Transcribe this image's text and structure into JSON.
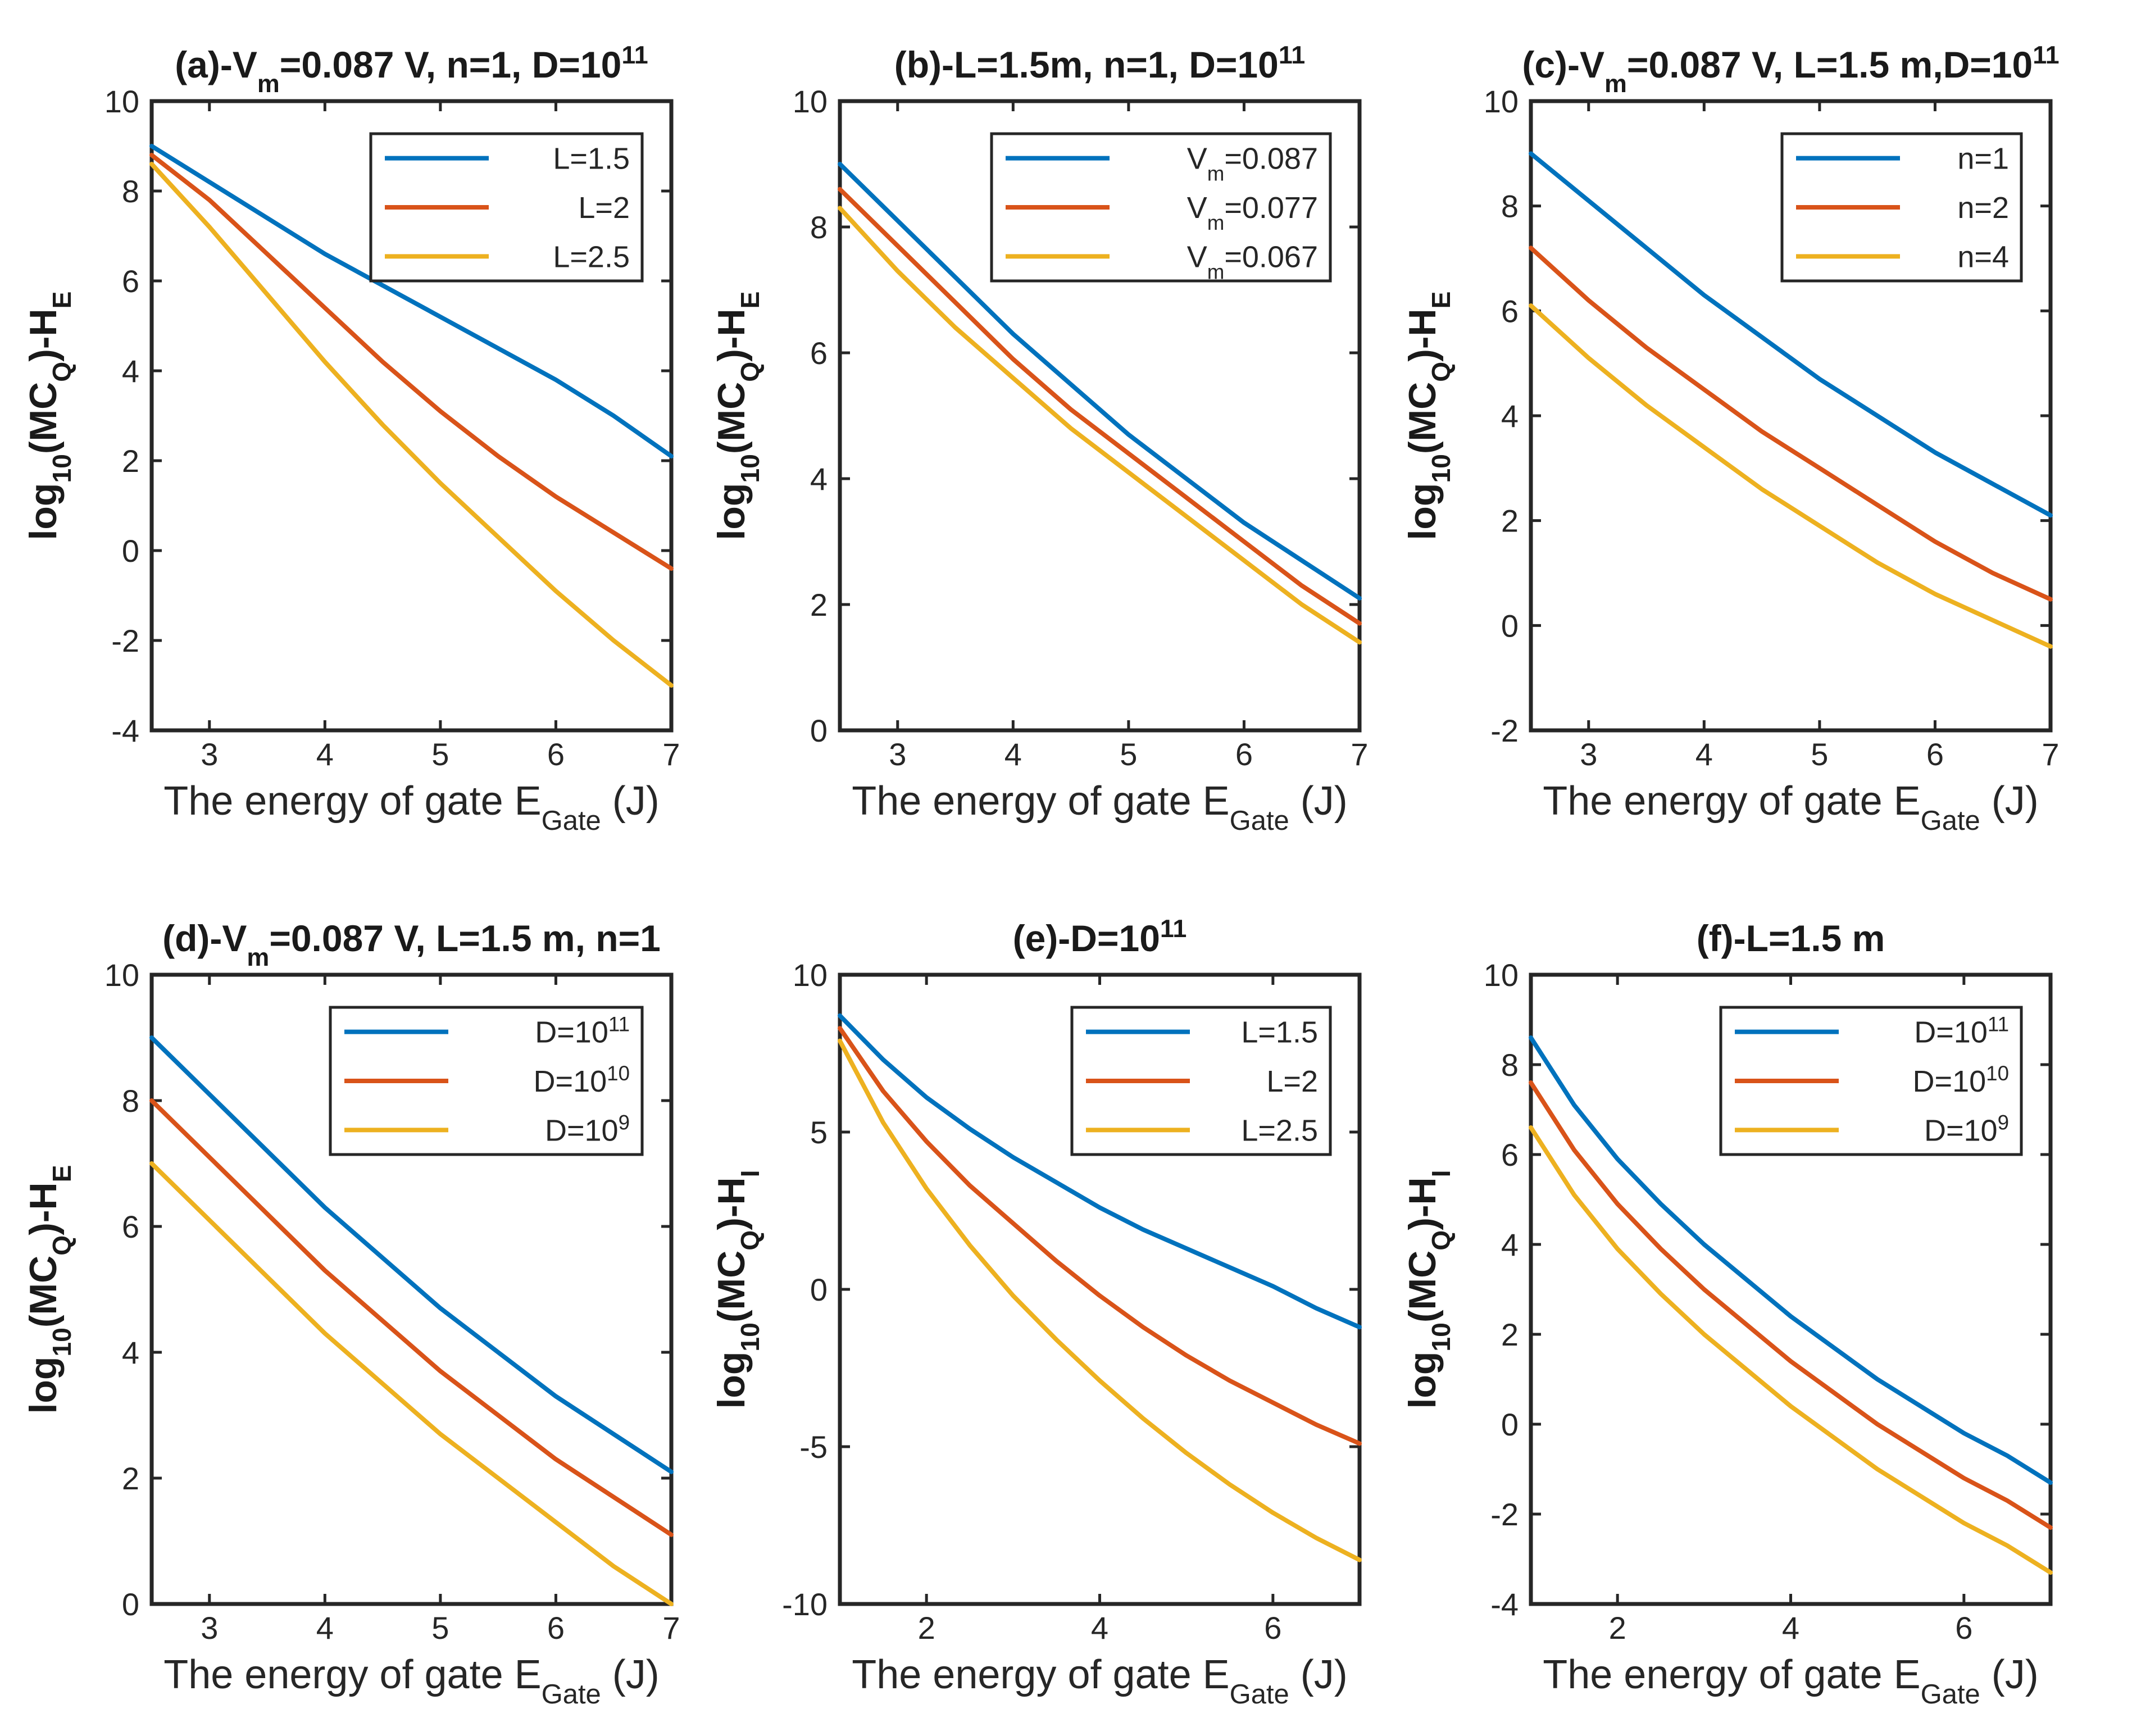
{
  "colors": {
    "blue": "#0072BD",
    "red": "#D95319",
    "yellow": "#EDB120",
    "axis": "#262626"
  },
  "chart_data": [
    {
      "id": "a",
      "type": "line",
      "title_parts": [
        "(a)-V",
        "m",
        "=0.087  V,  n=1,  D=10",
        "11"
      ],
      "xlabel_parts": [
        "The  energy  of  gate  E",
        "Gate",
        "  (J)"
      ],
      "ylabel_parts": [
        "log",
        "10",
        "(MC",
        "Q",
        ")-H",
        "E"
      ],
      "xlim": [
        2.5,
        7
      ],
      "ylim": [
        -4,
        10
      ],
      "xticks": [
        3,
        4,
        5,
        6,
        7
      ],
      "yticks": [
        -4,
        -2,
        0,
        2,
        4,
        6,
        8,
        10
      ],
      "series": [
        {
          "name": "L=1.5",
          "color": "blue",
          "x": [
            2.5,
            3,
            3.5,
            4,
            4.5,
            5,
            5.5,
            6,
            6.5,
            7
          ],
          "y": [
            9.0,
            8.2,
            7.4,
            6.6,
            5.9,
            5.2,
            4.5,
            3.8,
            3.0,
            2.1
          ]
        },
        {
          "name": "L=2",
          "color": "red",
          "x": [
            2.5,
            3,
            3.5,
            4,
            4.5,
            5,
            5.5,
            6,
            6.5,
            7
          ],
          "y": [
            8.8,
            7.8,
            6.6,
            5.4,
            4.2,
            3.1,
            2.1,
            1.2,
            0.4,
            -0.4
          ]
        },
        {
          "name": "L=2.5",
          "color": "yellow",
          "x": [
            2.5,
            3,
            3.5,
            4,
            4.5,
            5,
            5.5,
            6,
            6.5,
            7
          ],
          "y": [
            8.6,
            7.2,
            5.7,
            4.2,
            2.8,
            1.5,
            0.3,
            -0.9,
            -2.0,
            -3.0
          ]
        }
      ]
    },
    {
      "id": "b",
      "type": "line",
      "title_parts": [
        "(b)-L=",
        "1.5",
        "m,  n=1,  D=10",
        "11"
      ],
      "xlabel_parts": [
        "The  energy  of  gate  E",
        "Gate",
        "  (J)"
      ],
      "ylabel_parts": [
        "log",
        "10",
        "(MC",
        "Q",
        ")-H",
        "E"
      ],
      "xlim": [
        2.5,
        7
      ],
      "ylim": [
        0,
        10
      ],
      "xticks": [
        3,
        4,
        5,
        6,
        7
      ],
      "yticks": [
        0,
        2,
        4,
        6,
        8,
        10
      ],
      "series": [
        {
          "name": "V_m=0.087",
          "legend_parts": [
            "V",
            "m",
            "=0.087"
          ],
          "color": "blue",
          "x": [
            2.5,
            3,
            3.5,
            4,
            4.5,
            5,
            5.5,
            6,
            6.5,
            7
          ],
          "y": [
            9.0,
            8.1,
            7.2,
            6.3,
            5.5,
            4.7,
            4.0,
            3.3,
            2.7,
            2.1
          ]
        },
        {
          "name": "V_m=0.077",
          "legend_parts": [
            "V",
            "m",
            "=0.077"
          ],
          "color": "red",
          "x": [
            2.5,
            3,
            3.5,
            4,
            4.5,
            5,
            5.5,
            6,
            6.5,
            7
          ],
          "y": [
            8.6,
            7.7,
            6.8,
            5.9,
            5.1,
            4.4,
            3.7,
            3.0,
            2.3,
            1.7
          ]
        },
        {
          "name": "V_m=0.067",
          "legend_parts": [
            "V",
            "m",
            "=0.067"
          ],
          "color": "yellow",
          "x": [
            2.5,
            3,
            3.5,
            4,
            4.5,
            5,
            5.5,
            6,
            6.5,
            7
          ],
          "y": [
            8.3,
            7.3,
            6.4,
            5.6,
            4.8,
            4.1,
            3.4,
            2.7,
            2.0,
            1.4
          ]
        }
      ]
    },
    {
      "id": "c",
      "type": "line",
      "title_parts": [
        "(c)-V",
        "m",
        "=0.087  V,  L=1.5  m,D=10",
        "11"
      ],
      "xlabel_parts": [
        "The  energy  of  gate  E",
        "Gate",
        "  (J)"
      ],
      "ylabel_parts": [
        "log",
        "10",
        "(MC",
        "Q",
        ")-H",
        "E"
      ],
      "xlim": [
        2.5,
        7
      ],
      "ylim": [
        -2,
        10
      ],
      "xticks": [
        3,
        4,
        5,
        6,
        7
      ],
      "yticks": [
        -2,
        0,
        2,
        4,
        6,
        8,
        10
      ],
      "series": [
        {
          "name": "n=1",
          "color": "blue",
          "x": [
            2.5,
            3,
            3.5,
            4,
            4.5,
            5,
            5.5,
            6,
            6.5,
            7
          ],
          "y": [
            9.0,
            8.1,
            7.2,
            6.3,
            5.5,
            4.7,
            4.0,
            3.3,
            2.7,
            2.1
          ]
        },
        {
          "name": "n=2",
          "color": "red",
          "x": [
            2.5,
            3,
            3.5,
            4,
            4.5,
            5,
            5.5,
            6,
            6.5,
            7
          ],
          "y": [
            7.2,
            6.2,
            5.3,
            4.5,
            3.7,
            3.0,
            2.3,
            1.6,
            1.0,
            0.5
          ]
        },
        {
          "name": "n=4",
          "color": "yellow",
          "x": [
            2.5,
            3,
            3.5,
            4,
            4.5,
            5,
            5.5,
            6,
            6.5,
            7
          ],
          "y": [
            6.1,
            5.1,
            4.2,
            3.4,
            2.6,
            1.9,
            1.2,
            0.6,
            0.1,
            -0.4
          ]
        }
      ]
    },
    {
      "id": "d",
      "type": "line",
      "title_parts": [
        "(d)-V",
        "m",
        "=0.087  V,  L=1.5  m,  n=1"
      ],
      "xlabel_parts": [
        "The  energy  of  gate  E",
        "Gate",
        "  (J)"
      ],
      "ylabel_parts": [
        "log",
        "10",
        "(MC",
        "Q",
        ")-H",
        "E"
      ],
      "xlim": [
        2.5,
        7
      ],
      "ylim": [
        0,
        10
      ],
      "xticks": [
        3,
        4,
        5,
        6,
        7
      ],
      "yticks": [
        0,
        2,
        4,
        6,
        8,
        10
      ],
      "series": [
        {
          "name": "D=10^11",
          "legend_parts": [
            "D=10",
            "11"
          ],
          "color": "blue",
          "x": [
            2.5,
            3,
            3.5,
            4,
            4.5,
            5,
            5.5,
            6,
            6.5,
            7
          ],
          "y": [
            9.0,
            8.1,
            7.2,
            6.3,
            5.5,
            4.7,
            4.0,
            3.3,
            2.7,
            2.1
          ]
        },
        {
          "name": "D=10^10",
          "legend_parts": [
            "D=10",
            "10"
          ],
          "color": "red",
          "x": [
            2.5,
            3,
            3.5,
            4,
            4.5,
            5,
            5.5,
            6,
            6.5,
            7
          ],
          "y": [
            8.0,
            7.1,
            6.2,
            5.3,
            4.5,
            3.7,
            3.0,
            2.3,
            1.7,
            1.1
          ]
        },
        {
          "name": "D=10^9",
          "legend_parts": [
            "D=10",
            "9"
          ],
          "color": "yellow",
          "x": [
            2.5,
            3,
            3.5,
            4,
            4.5,
            5,
            5.5,
            6,
            6.5,
            7
          ],
          "y": [
            7.0,
            6.1,
            5.2,
            4.3,
            3.5,
            2.7,
            2.0,
            1.3,
            0.6,
            0.0
          ]
        }
      ]
    },
    {
      "id": "e",
      "type": "line",
      "title_parts": [
        "(e)-D=10",
        "11"
      ],
      "xlabel_parts": [
        "The  energy  of  gate  E",
        "Gate",
        "  (J)"
      ],
      "ylabel_parts": [
        "log",
        "10",
        "(MC",
        "Q",
        ")-H",
        "I"
      ],
      "xlim": [
        1,
        7
      ],
      "ylim": [
        -10,
        10
      ],
      "xticks": [
        2,
        4,
        6
      ],
      "yticks": [
        -10,
        -5,
        0,
        5,
        10
      ],
      "series": [
        {
          "name": "L=1.5",
          "color": "blue",
          "x": [
            1,
            1.5,
            2,
            2.5,
            3,
            3.5,
            4,
            4.5,
            5,
            5.5,
            6,
            6.5,
            7
          ],
          "y": [
            8.7,
            7.3,
            6.1,
            5.1,
            4.2,
            3.4,
            2.6,
            1.9,
            1.3,
            0.7,
            0.1,
            -0.6,
            -1.2
          ]
        },
        {
          "name": "L=2",
          "color": "red",
          "x": [
            1,
            1.5,
            2,
            2.5,
            3,
            3.5,
            4,
            4.5,
            5,
            5.5,
            6,
            6.5,
            7
          ],
          "y": [
            8.3,
            6.3,
            4.7,
            3.3,
            2.1,
            0.9,
            -0.2,
            -1.2,
            -2.1,
            -2.9,
            -3.6,
            -4.3,
            -4.9
          ]
        },
        {
          "name": "L=2.5",
          "color": "yellow",
          "x": [
            1,
            1.5,
            2,
            2.5,
            3,
            3.5,
            4,
            4.5,
            5,
            5.5,
            6,
            6.5,
            7
          ],
          "y": [
            7.9,
            5.3,
            3.2,
            1.4,
            -0.2,
            -1.6,
            -2.9,
            -4.1,
            -5.2,
            -6.2,
            -7.1,
            -7.9,
            -8.6
          ]
        }
      ]
    },
    {
      "id": "f",
      "type": "line",
      "title_parts": [
        "(f)-L=",
        "1.5",
        " m"
      ],
      "xlabel_parts": [
        "The  energy  of  gate  E",
        "Gate",
        "  (J)"
      ],
      "ylabel_parts": [
        "log",
        "10",
        "(MC",
        "Q",
        ")-H",
        "I"
      ],
      "xlim": [
        1,
        7
      ],
      "ylim": [
        -4,
        10
      ],
      "xticks": [
        2,
        4,
        6
      ],
      "yticks": [
        -4,
        -2,
        0,
        2,
        4,
        6,
        8,
        10
      ],
      "series": [
        {
          "name": "D=10^11",
          "legend_parts": [
            "D=10",
            "11"
          ],
          "color": "blue",
          "x": [
            1,
            1.5,
            2,
            2.5,
            3,
            3.5,
            4,
            4.5,
            5,
            5.5,
            6,
            6.5,
            7
          ],
          "y": [
            8.6,
            7.1,
            5.9,
            4.9,
            4.0,
            3.2,
            2.4,
            1.7,
            1.0,
            0.4,
            -0.2,
            -0.7,
            -1.3
          ]
        },
        {
          "name": "D=10^10",
          "legend_parts": [
            "D=10",
            "10"
          ],
          "color": "red",
          "x": [
            1,
            1.5,
            2,
            2.5,
            3,
            3.5,
            4,
            4.5,
            5,
            5.5,
            6,
            6.5,
            7
          ],
          "y": [
            7.6,
            6.1,
            4.9,
            3.9,
            3.0,
            2.2,
            1.4,
            0.7,
            0.0,
            -0.6,
            -1.2,
            -1.7,
            -2.3
          ]
        },
        {
          "name": "D=10^9",
          "legend_parts": [
            "D=10",
            "9"
          ],
          "color": "yellow",
          "x": [
            1,
            1.5,
            2,
            2.5,
            3,
            3.5,
            4,
            4.5,
            5,
            5.5,
            6,
            6.5,
            7
          ],
          "y": [
            6.6,
            5.1,
            3.9,
            2.9,
            2.0,
            1.2,
            0.4,
            -0.3,
            -1.0,
            -1.6,
            -2.2,
            -2.7,
            -3.3
          ]
        }
      ]
    }
  ]
}
